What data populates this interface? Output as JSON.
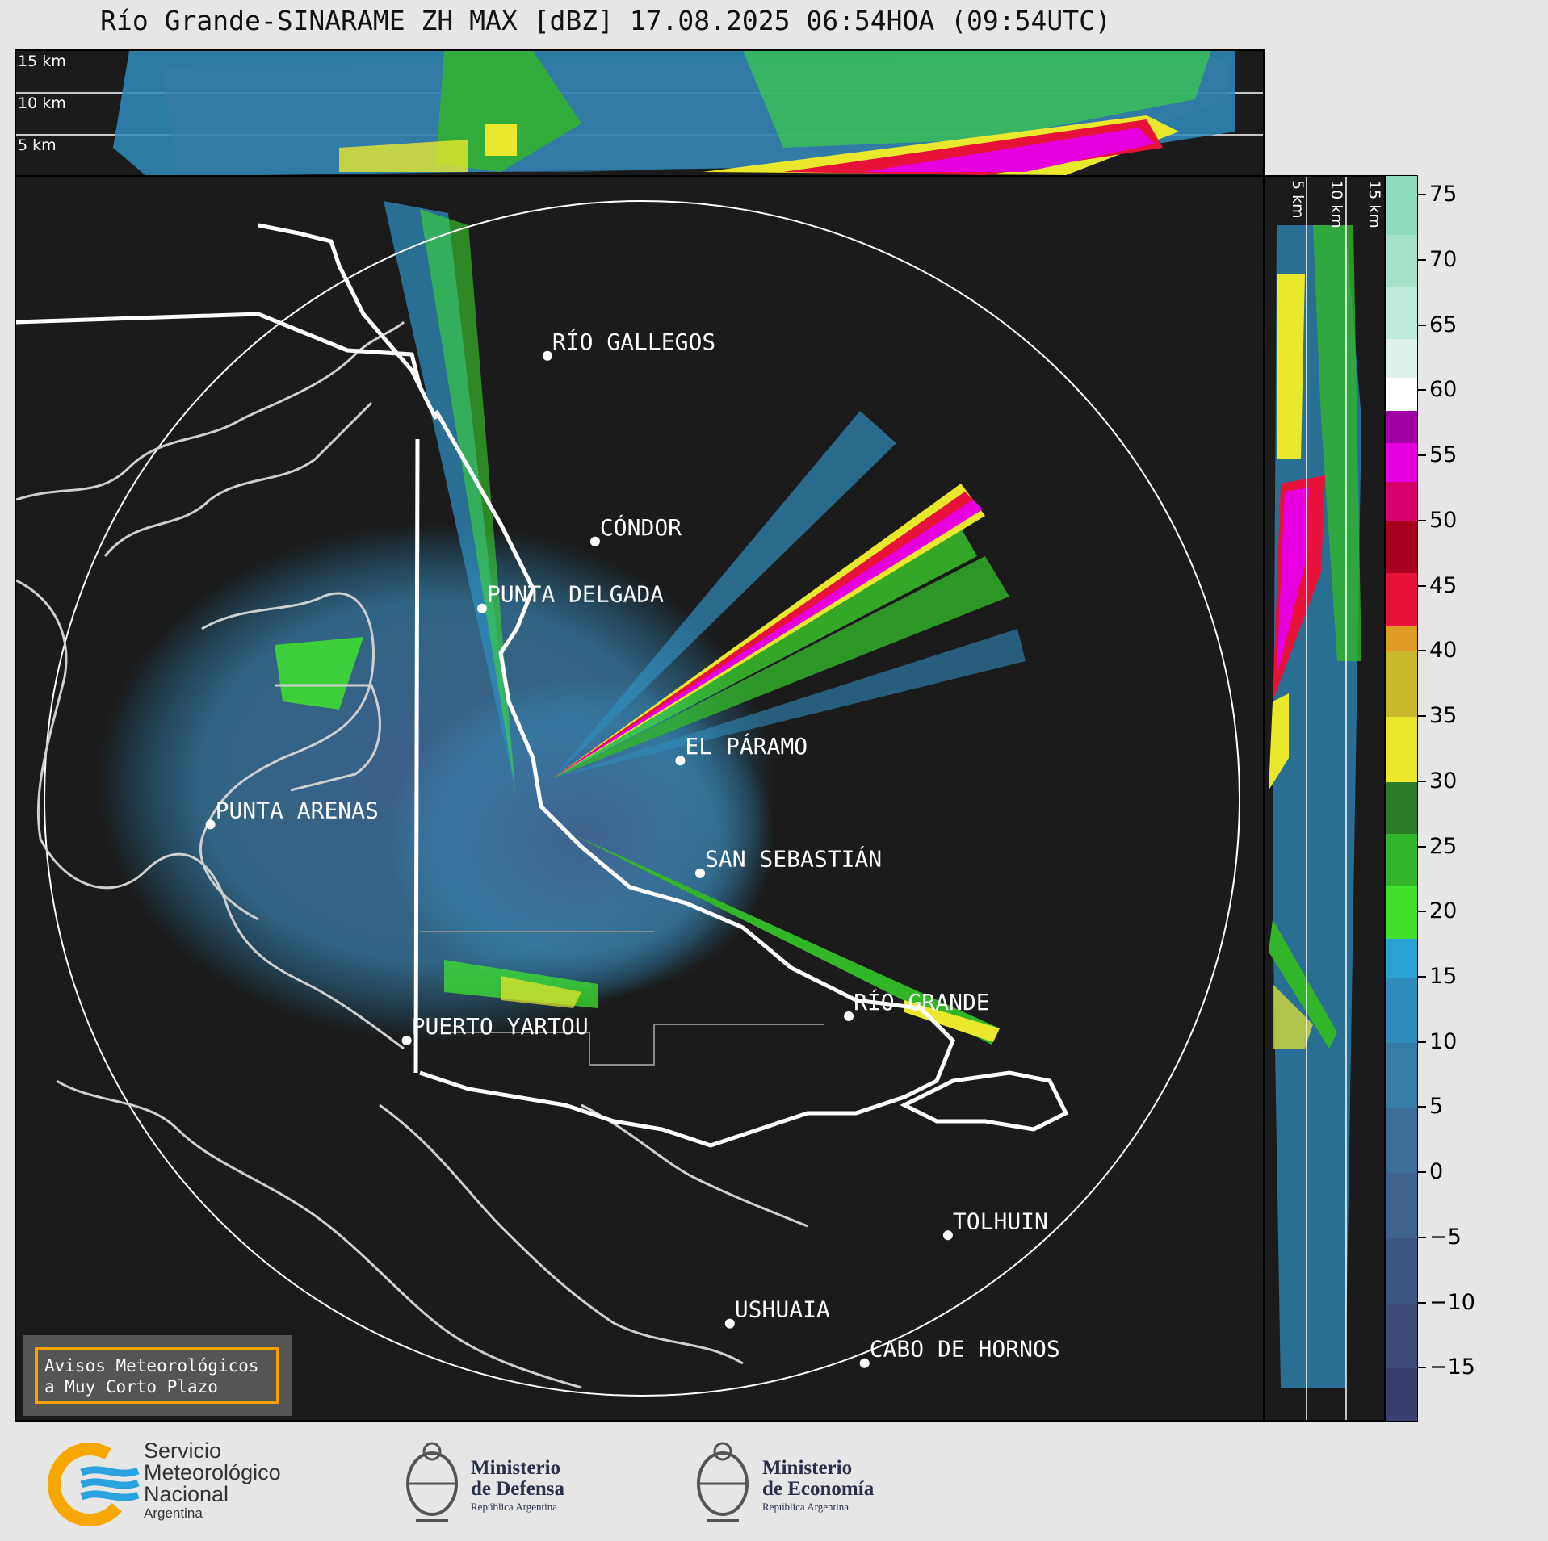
{
  "title": "Río Grande-SINARAME ZH MAX [dBZ] 17.08.2025 06:54HOA (09:54UTC)",
  "top_panel": {
    "height_labels": [
      "15 km",
      "10 km",
      "5 km"
    ]
  },
  "side_panel": {
    "height_labels": [
      "5 km",
      "10 km",
      "15 km"
    ]
  },
  "places": [
    {
      "name": "RÍO GALLEGOS",
      "lon": -69.22,
      "lat": -51.62
    },
    {
      "name": "CÓNDOR",
      "lon": -68.98,
      "lat": -52.23
    },
    {
      "name": "PUNTA DELGADA",
      "lon": -69.55,
      "lat": -52.45
    },
    {
      "name": "EL PÁRAMO",
      "lon": -68.55,
      "lat": -52.95
    },
    {
      "name": "PUNTA ARENAS",
      "lon": -70.92,
      "lat": -53.16
    },
    {
      "name": "SAN SEBASTIÁN",
      "lon": -68.45,
      "lat": -53.32
    },
    {
      "name": "RÍO GRANDE",
      "lon": -67.7,
      "lat": -53.79
    },
    {
      "name": "PUERTO YARTOU",
      "lon": -69.93,
      "lat": -53.87
    },
    {
      "name": "TOLHUIN",
      "lon": -67.2,
      "lat": -54.51
    },
    {
      "name": "USHUAIA",
      "lon": -68.3,
      "lat": -54.8
    },
    {
      "name": "CABO DE HORNOS",
      "lon": -67.62,
      "lat": -54.93
    }
  ],
  "notice": {
    "line1": "Avisos Meteorológicos",
    "line2": "a Muy Corto Plazo"
  },
  "colorbar": {
    "unit": "dBZ",
    "range": [
      -19,
      76.5
    ],
    "ticks": [
      "75",
      "70",
      "65",
      "60",
      "55",
      "50",
      "45",
      "40",
      "35",
      "30",
      "25",
      "20",
      "15",
      "10",
      "5",
      "0",
      "−5",
      "−10",
      "−15"
    ],
    "colors": [
      {
        "from": -19,
        "to": -15,
        "color": "#3b3f70"
      },
      {
        "from": -15,
        "to": -10,
        "color": "#3f4a78"
      },
      {
        "from": -10,
        "to": -5,
        "color": "#3f5683"
      },
      {
        "from": -5,
        "to": 0,
        "color": "#3f628e"
      },
      {
        "from": 0,
        "to": 5,
        "color": "#3b6f99"
      },
      {
        "from": 5,
        "to": 10,
        "color": "#377ca6"
      },
      {
        "from": 10,
        "to": 15,
        "color": "#2f8cbd"
      },
      {
        "from": 15,
        "to": 18,
        "color": "#29a3d6"
      },
      {
        "from": 18,
        "to": 22,
        "color": "#3fe12d"
      },
      {
        "from": 22,
        "to": 26,
        "color": "#33b52a"
      },
      {
        "from": 26,
        "to": 30,
        "color": "#2a7d25"
      },
      {
        "from": 30,
        "to": 35,
        "color": "#e9e82d"
      },
      {
        "from": 35,
        "to": 40,
        "color": "#c9b82a"
      },
      {
        "from": 40,
        "to": 42,
        "color": "#e09b24"
      },
      {
        "from": 42,
        "to": 46,
        "color": "#e6123a"
      },
      {
        "from": 46,
        "to": 50,
        "color": "#a6001e"
      },
      {
        "from": 50,
        "to": 53,
        "color": "#d8006a"
      },
      {
        "from": 53,
        "to": 56,
        "color": "#e600e0"
      },
      {
        "from": 56,
        "to": 58.5,
        "color": "#a000a4"
      },
      {
        "from": 58.5,
        "to": 61,
        "color": "#ffffff"
      },
      {
        "from": 61,
        "to": 64,
        "color": "#dff2ea"
      },
      {
        "from": 64,
        "to": 68,
        "color": "#bfe9d9"
      },
      {
        "from": 68,
        "to": 72,
        "color": "#a3e2c9"
      },
      {
        "from": 72,
        "to": 76.5,
        "color": "#8cdcbd"
      }
    ]
  },
  "logos": {
    "smn": {
      "line1": "Servicio",
      "line2": "Meteorológico",
      "line3": "Nacional",
      "line4": "Argentina"
    },
    "defensa": {
      "line1": "Ministerio",
      "line2": "de Defensa",
      "line3": "República Argentina"
    },
    "economia": {
      "line1": "Ministerio",
      "line2": "de Economía",
      "line3": "República Argentina"
    }
  }
}
